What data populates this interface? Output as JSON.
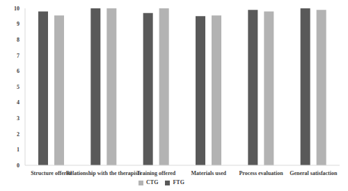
{
  "chart_data": {
    "type": "bar",
    "categories": [
      "Structure offered",
      "Relationship with the therapists",
      "Training offered",
      "Materials used",
      "Process evaluation",
      "General satisfaction"
    ],
    "series": [
      {
        "name": "FTG",
        "color": "#595959",
        "values": [
          9.8,
          10,
          9.7,
          9.5,
          9.9,
          10
        ]
      },
      {
        "name": "CTG",
        "color": "#b3b3b3",
        "values": [
          9.55,
          10,
          10,
          9.55,
          9.8,
          9.9
        ]
      }
    ],
    "ylim": [
      0,
      10
    ],
    "yticks": [
      0,
      1,
      2,
      3,
      4,
      5,
      6,
      7,
      8,
      9,
      10
    ],
    "grid": false,
    "legend": "bottom"
  }
}
